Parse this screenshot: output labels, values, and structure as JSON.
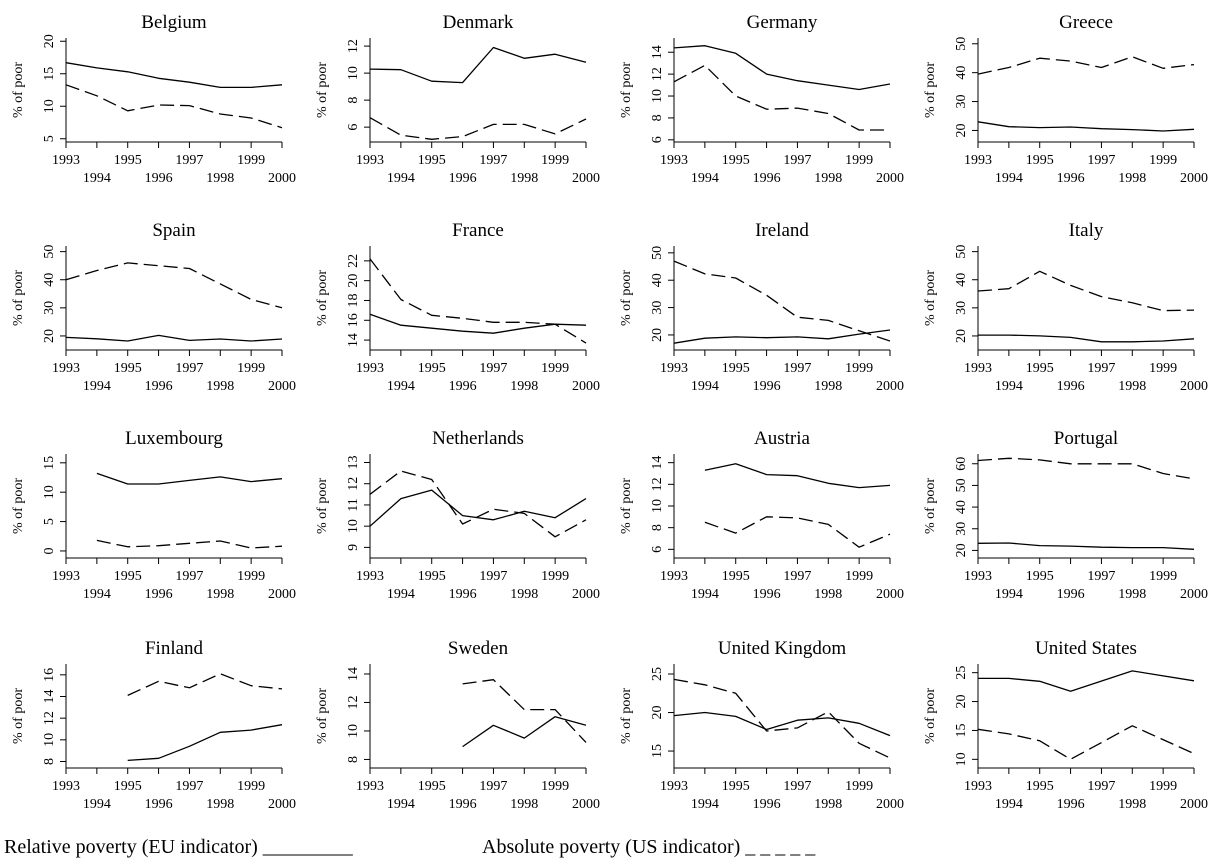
{
  "legend": {
    "solid": "Relative poverty (EU indicator) _________",
    "dashed": "Absolute poverty (US indicator) _ _ _ _ _"
  },
  "chart_data": [
    {
      "type": "line",
      "title": "Belgium",
      "ylabel": "% of poor",
      "xlim": [
        1993,
        2000
      ],
      "ylim": [
        4.5,
        20.5
      ],
      "yticks": [
        5,
        10,
        15,
        20
      ],
      "xticks": [
        1993,
        1994,
        1995,
        1996,
        1997,
        1998,
        1999,
        2000
      ],
      "series": [
        {
          "style": "solid",
          "x": [
            1993,
            1994,
            1995,
            1996,
            1997,
            1998,
            1999,
            2000
          ],
          "values": [
            16.7,
            15.9,
            15.3,
            14.3,
            13.7,
            12.9,
            12.9,
            13.3
          ]
        },
        {
          "style": "dashed",
          "x": [
            1993,
            1994,
            1995,
            1996,
            1997,
            1998,
            1999,
            2000
          ],
          "values": [
            13.3,
            11.6,
            9.3,
            10.2,
            10.1,
            8.8,
            8.2,
            6.7
          ]
        }
      ]
    },
    {
      "type": "line",
      "title": "Denmark",
      "ylabel": "% of poor",
      "xlim": [
        1993,
        2000
      ],
      "ylim": [
        4.9,
        12.6
      ],
      "yticks": [
        6,
        8,
        10,
        12
      ],
      "xticks": [
        1993,
        1994,
        1995,
        1996,
        1997,
        1998,
        1999,
        2000
      ],
      "series": [
        {
          "style": "solid",
          "x": [
            1993,
            1994,
            1995,
            1996,
            1997,
            1998,
            1999,
            2000
          ],
          "values": [
            10.3,
            10.25,
            9.4,
            9.3,
            11.9,
            11.1,
            11.4,
            10.8
          ]
        },
        {
          "style": "dashed",
          "x": [
            1993,
            1994,
            1995,
            1996,
            1997,
            1998,
            1999,
            2000
          ],
          "values": [
            6.7,
            5.4,
            5.1,
            5.3,
            6.2,
            6.2,
            5.5,
            6.6
          ]
        }
      ]
    },
    {
      "type": "line",
      "title": "Germany",
      "ylabel": "% of poor",
      "xlim": [
        1993,
        2000
      ],
      "ylim": [
        5.8,
        15.3
      ],
      "yticks": [
        6,
        8,
        10,
        12,
        14
      ],
      "xticks": [
        1993,
        1994,
        1995,
        1996,
        1997,
        1998,
        1999,
        2000
      ],
      "series": [
        {
          "style": "solid",
          "x": [
            1993,
            1994,
            1995,
            1996,
            1997,
            1998,
            1999,
            2000
          ],
          "values": [
            14.4,
            14.6,
            13.9,
            12.0,
            11.4,
            11.0,
            10.6,
            11.1
          ]
        },
        {
          "style": "dashed",
          "x": [
            1993,
            1994,
            1995,
            1996,
            1997,
            1998,
            1999,
            2000
          ],
          "values": [
            11.3,
            12.8,
            10.0,
            8.8,
            8.9,
            8.4,
            6.9,
            6.9
          ]
        }
      ]
    },
    {
      "type": "line",
      "title": "Greece",
      "ylabel": "% of poor",
      "xlim": [
        1993,
        2000
      ],
      "ylim": [
        16,
        52
      ],
      "yticks": [
        20,
        30,
        40,
        50
      ],
      "xticks": [
        1993,
        1994,
        1995,
        1996,
        1997,
        1998,
        1999,
        2000
      ],
      "series": [
        {
          "style": "solid",
          "x": [
            1993,
            1994,
            1995,
            1996,
            1997,
            1998,
            1999,
            2000
          ],
          "values": [
            23.0,
            21.3,
            21.0,
            21.2,
            20.6,
            20.3,
            19.8,
            20.4
          ]
        },
        {
          "style": "dashed",
          "x": [
            1993,
            1994,
            1995,
            1996,
            1997,
            1998,
            1999,
            2000
          ],
          "values": [
            39.5,
            41.8,
            45.0,
            44.0,
            41.8,
            45.5,
            41.5,
            42.8
          ]
        }
      ]
    },
    {
      "type": "line",
      "title": "Spain",
      "ylabel": "% of poor",
      "xlim": [
        1993,
        2000
      ],
      "ylim": [
        15,
        52
      ],
      "yticks": [
        20,
        30,
        40,
        50
      ],
      "xticks": [
        1993,
        1994,
        1995,
        1996,
        1997,
        1998,
        1999,
        2000
      ],
      "series": [
        {
          "style": "solid",
          "x": [
            1993,
            1994,
            1995,
            1996,
            1997,
            1998,
            1999,
            2000
          ],
          "values": [
            19.5,
            19.0,
            18.2,
            20.2,
            18.4,
            18.9,
            18.2,
            18.9
          ]
        },
        {
          "style": "dashed",
          "x": [
            1993,
            1994,
            1995,
            1996,
            1997,
            1998,
            1999,
            2000
          ],
          "values": [
            40.0,
            43.3,
            46.0,
            45.0,
            44.0,
            38.5,
            33.0,
            30.0
          ]
        }
      ]
    },
    {
      "type": "line",
      "title": "France",
      "ylabel": "% of poor",
      "xlim": [
        1993,
        2000
      ],
      "ylim": [
        13.0,
        23.5
      ],
      "yticks": [
        14,
        16,
        18,
        20,
        22
      ],
      "xticks": [
        1993,
        1994,
        1995,
        1996,
        1997,
        1998,
        1999,
        2000
      ],
      "series": [
        {
          "style": "solid",
          "x": [
            1993,
            1994,
            1995,
            1996,
            1997,
            1998,
            1999,
            2000
          ],
          "values": [
            16.6,
            15.5,
            15.2,
            14.9,
            14.7,
            15.2,
            15.6,
            15.5
          ]
        },
        {
          "style": "dashed",
          "x": [
            1993,
            1994,
            1995,
            1996,
            1997,
            1998,
            1999,
            2000
          ],
          "values": [
            22.2,
            18.1,
            16.5,
            16.2,
            15.8,
            15.8,
            15.6,
            13.7
          ]
        }
      ]
    },
    {
      "type": "line",
      "title": "Ireland",
      "ylabel": "% of poor",
      "xlim": [
        1993,
        2000
      ],
      "ylim": [
        14.5,
        52.5
      ],
      "yticks": [
        20,
        30,
        40,
        50
      ],
      "xticks": [
        1993,
        1994,
        1995,
        1996,
        1997,
        1998,
        1999,
        2000
      ],
      "series": [
        {
          "style": "solid",
          "x": [
            1993,
            1994,
            1995,
            1996,
            1997,
            1998,
            1999,
            2000
          ],
          "values": [
            17.0,
            18.8,
            19.3,
            19.0,
            19.3,
            18.6,
            20.3,
            21.8
          ]
        },
        {
          "style": "dashed",
          "x": [
            1993,
            1994,
            1995,
            1996,
            1997,
            1998,
            1999,
            2000
          ],
          "values": [
            47.0,
            42.3,
            40.8,
            34.5,
            26.5,
            25.3,
            21.5,
            17.8
          ]
        }
      ]
    },
    {
      "type": "line",
      "title": "Italy",
      "ylabel": "% of poor",
      "xlim": [
        1993,
        2000
      ],
      "ylim": [
        15,
        52
      ],
      "yticks": [
        20,
        30,
        40,
        50
      ],
      "xticks": [
        1993,
        1994,
        1995,
        1996,
        1997,
        1998,
        1999,
        2000
      ],
      "series": [
        {
          "style": "solid",
          "x": [
            1993,
            1994,
            1995,
            1996,
            1997,
            1998,
            1999,
            2000
          ],
          "values": [
            20.3,
            20.3,
            20.0,
            19.5,
            17.9,
            17.9,
            18.2,
            19.0
          ]
        },
        {
          "style": "dashed",
          "x": [
            1993,
            1994,
            1995,
            1996,
            1997,
            1998,
            1999,
            2000
          ],
          "values": [
            36.0,
            36.8,
            43.0,
            38.0,
            34.0,
            31.8,
            29.0,
            29.2
          ]
        }
      ]
    },
    {
      "type": "line",
      "title": "Luxembourg",
      "ylabel": "% of poor",
      "xlim": [
        1993,
        2000
      ],
      "ylim": [
        -1.2,
        16.5
      ],
      "yticks": [
        0,
        5,
        10,
        15
      ],
      "xticks": [
        1993,
        1994,
        1995,
        1996,
        1997,
        1998,
        1999,
        2000
      ],
      "series": [
        {
          "style": "solid",
          "x": [
            1994,
            1995,
            1996,
            1997,
            1998,
            1999,
            2000
          ],
          "values": [
            13.2,
            11.4,
            11.4,
            12.0,
            12.6,
            11.8,
            12.3
          ]
        },
        {
          "style": "dashed",
          "x": [
            1994,
            1995,
            1996,
            1997,
            1998,
            1999,
            2000
          ],
          "values": [
            1.8,
            0.7,
            0.9,
            1.3,
            1.7,
            0.5,
            0.8
          ]
        }
      ]
    },
    {
      "type": "line",
      "title": "Netherlands",
      "ylabel": "% of poor",
      "xlim": [
        1993,
        2000
      ],
      "ylim": [
        8.5,
        13.4
      ],
      "yticks": [
        9,
        10,
        11,
        12,
        13
      ],
      "xticks": [
        1993,
        1994,
        1995,
        1996,
        1997,
        1998,
        1999,
        2000
      ],
      "series": [
        {
          "style": "solid",
          "x": [
            1993,
            1994,
            1995,
            1996,
            1997,
            1998,
            1999,
            2000
          ],
          "values": [
            10.0,
            11.3,
            11.7,
            10.5,
            10.3,
            10.7,
            10.4,
            11.3
          ]
        },
        {
          "style": "dashed",
          "x": [
            1993,
            1994,
            1995,
            1996,
            1997,
            1998,
            1999,
            2000
          ],
          "values": [
            11.5,
            12.6,
            12.2,
            10.1,
            10.8,
            10.6,
            9.5,
            10.3
          ]
        }
      ]
    },
    {
      "type": "line",
      "title": "Austria",
      "ylabel": "% of poor",
      "xlim": [
        1993,
        2000
      ],
      "ylim": [
        5.2,
        14.8
      ],
      "yticks": [
        6,
        8,
        10,
        12,
        14
      ],
      "xticks": [
        1993,
        1994,
        1995,
        1996,
        1997,
        1998,
        1999,
        2000
      ],
      "series": [
        {
          "style": "solid",
          "x": [
            1994,
            1995,
            1996,
            1997,
            1998,
            1999,
            2000
          ],
          "values": [
            13.3,
            13.9,
            12.9,
            12.8,
            12.1,
            11.7,
            11.9
          ]
        },
        {
          "style": "dashed",
          "x": [
            1994,
            1995,
            1996,
            1997,
            1998,
            1999,
            2000
          ],
          "values": [
            8.5,
            7.5,
            9.0,
            8.9,
            8.3,
            6.2,
            7.4
          ]
        }
      ]
    },
    {
      "type": "line",
      "title": "Portugal",
      "ylabel": "% of poor",
      "xlim": [
        1993,
        2000
      ],
      "ylim": [
        16.5,
        64.5
      ],
      "yticks": [
        20,
        30,
        40,
        50,
        60
      ],
      "xticks": [
        1993,
        1994,
        1995,
        1996,
        1997,
        1998,
        1999,
        2000
      ],
      "series": [
        {
          "style": "solid",
          "x": [
            1993,
            1994,
            1995,
            1996,
            1997,
            1998,
            1999,
            2000
          ],
          "values": [
            23.3,
            23.4,
            22.2,
            22.0,
            21.5,
            21.3,
            21.3,
            20.5
          ]
        },
        {
          "style": "dashed",
          "x": [
            1993,
            1994,
            1995,
            1996,
            1997,
            1998,
            1999,
            2000
          ],
          "values": [
            61.5,
            62.5,
            61.8,
            60.0,
            60.0,
            60.0,
            55.5,
            53.0
          ]
        }
      ]
    },
    {
      "type": "line",
      "title": "Finland",
      "ylabel": "% of poor",
      "xlim": [
        1993,
        2000
      ],
      "ylim": [
        7.4,
        17.0
      ],
      "yticks": [
        8,
        10,
        12,
        14,
        16
      ],
      "xticks": [
        1993,
        1994,
        1995,
        1996,
        1997,
        1998,
        1999,
        2000
      ],
      "series": [
        {
          "style": "solid",
          "x": [
            1995,
            1996,
            1997,
            1998,
            1999,
            2000
          ],
          "values": [
            8.1,
            8.3,
            9.4,
            10.7,
            10.9,
            11.4
          ]
        },
        {
          "style": "dashed",
          "x": [
            1995,
            1996,
            1997,
            1998,
            1999,
            2000
          ],
          "values": [
            14.1,
            15.4,
            14.8,
            16.1,
            15.0,
            14.7
          ]
        }
      ]
    },
    {
      "type": "line",
      "title": "Sweden",
      "ylabel": "% of poor",
      "xlim": [
        1993,
        2000
      ],
      "ylim": [
        7.4,
        14.7
      ],
      "yticks": [
        8,
        10,
        12,
        14
      ],
      "xticks": [
        1993,
        1994,
        1995,
        1996,
        1997,
        1998,
        1999,
        2000
      ],
      "series": [
        {
          "style": "solid",
          "x": [
            1996,
            1997,
            1998,
            1999,
            2000
          ],
          "values": [
            8.9,
            10.4,
            9.5,
            11.0,
            10.4
          ]
        },
        {
          "style": "dashed",
          "x": [
            1996,
            1997,
            1998,
            1999,
            2000
          ],
          "values": [
            13.3,
            13.6,
            11.5,
            11.5,
            9.2
          ]
        }
      ]
    },
    {
      "type": "line",
      "title": "United Kingdom",
      "ylabel": "% of poor",
      "xlim": [
        1993,
        2000
      ],
      "ylim": [
        12.8,
        26.3
      ],
      "yticks": [
        15,
        20,
        25
      ],
      "xticks": [
        1993,
        1994,
        1995,
        1996,
        1997,
        1998,
        1999,
        2000
      ],
      "series": [
        {
          "style": "solid",
          "x": [
            1993,
            1994,
            1995,
            1996,
            1997,
            1998,
            1999,
            2000
          ],
          "values": [
            19.6,
            20.0,
            19.5,
            17.8,
            19.0,
            19.3,
            18.6,
            17.0
          ]
        },
        {
          "style": "dashed",
          "x": [
            1993,
            1994,
            1995,
            1996,
            1997,
            1998,
            1999,
            2000
          ],
          "values": [
            24.3,
            23.6,
            22.5,
            17.6,
            18.0,
            20.1,
            16.0,
            14.1
          ]
        }
      ]
    },
    {
      "type": "line",
      "title": "United States",
      "ylabel": "% of poor",
      "xlim": [
        1993,
        2000
      ],
      "ylim": [
        8.5,
        26.5
      ],
      "yticks": [
        10,
        15,
        20,
        25
      ],
      "xticks": [
        1993,
        1994,
        1995,
        1996,
        1997,
        1998,
        1999,
        2000
      ],
      "series": [
        {
          "style": "solid",
          "x": [
            1993,
            1994,
            1995,
            1996,
            1998,
            2000
          ],
          "values": [
            24.0,
            24.0,
            23.5,
            21.8,
            25.3,
            23.6
          ]
        },
        {
          "style": "dashed",
          "x": [
            1993,
            1994,
            1995,
            1996,
            1998,
            2000
          ],
          "values": [
            15.2,
            14.4,
            13.2,
            10.0,
            15.8,
            11.0
          ]
        }
      ]
    }
  ]
}
